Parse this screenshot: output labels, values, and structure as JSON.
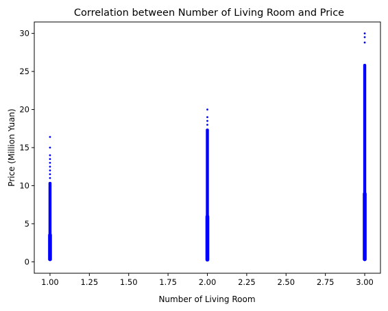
{
  "chart_data": {
    "type": "scatter",
    "title": "Correlation between Number of Living Room and Price",
    "xlabel": "Number of Living Room",
    "ylabel": "Price (Million Yuan)",
    "xlim": [
      0.9,
      3.1
    ],
    "ylim": [
      -1.5,
      31.5
    ],
    "xticks": [
      "1.00",
      "1.25",
      "1.50",
      "1.75",
      "2.00",
      "2.25",
      "2.50",
      "2.75",
      "3.00"
    ],
    "yticks": [
      "0",
      "5",
      "10",
      "15",
      "20",
      "25",
      "30"
    ],
    "grid": false,
    "marker_color": "#0000ff",
    "series": [
      {
        "x": 1,
        "dense_range": [
          0.1,
          10.5
        ],
        "outliers": [
          11.0,
          11.5,
          12.0,
          12.5,
          13.0,
          13.5,
          14.0,
          15.0,
          16.4
        ]
      },
      {
        "x": 2,
        "dense_range": [
          0.05,
          17.5
        ],
        "outliers": [
          18.0,
          18.5,
          19.0,
          20.0
        ]
      },
      {
        "x": 3,
        "dense_range": [
          0.1,
          26.0
        ],
        "outliers": [
          28.8,
          29.5,
          30.0
        ]
      }
    ]
  }
}
